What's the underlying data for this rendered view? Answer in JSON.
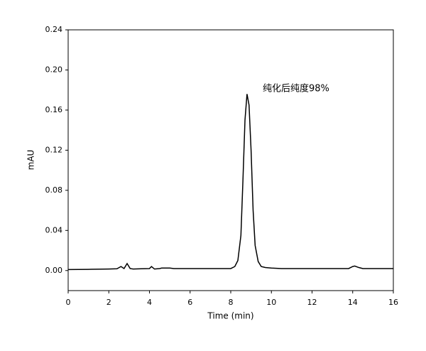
{
  "chart_data": {
    "type": "line",
    "annotation": "纯化后纯度98%",
    "xlabel": "Time (min)",
    "ylabel": "mAU",
    "color": "#000000",
    "x": [
      0,
      1,
      2,
      2.4,
      2.6,
      2.75,
      2.9,
      3.05,
      3.2,
      3.6,
      4.0,
      4.1,
      4.25,
      4.5,
      4.6,
      5.0,
      5.2,
      6,
      7,
      8.0,
      8.2,
      8.35,
      8.5,
      8.6,
      8.7,
      8.8,
      8.9,
      9.0,
      9.1,
      9.2,
      9.35,
      9.5,
      9.7,
      10,
      10.5,
      11,
      12,
      13,
      13.8,
      14.0,
      14.1,
      14.3,
      14.5,
      15,
      16
    ],
    "values": [
      0.001,
      0.0012,
      0.0015,
      0.0018,
      0.004,
      0.002,
      0.007,
      0.002,
      0.0015,
      0.0018,
      0.002,
      0.004,
      0.0015,
      0.002,
      0.0025,
      0.0025,
      0.002,
      0.002,
      0.002,
      0.002,
      0.004,
      0.01,
      0.035,
      0.09,
      0.15,
      0.176,
      0.165,
      0.12,
      0.06,
      0.025,
      0.009,
      0.004,
      0.003,
      0.0025,
      0.002,
      0.002,
      0.002,
      0.002,
      0.002,
      0.004,
      0.0045,
      0.003,
      0.002,
      0.002,
      0.002
    ],
    "xlim": [
      0,
      16
    ],
    "xticks": [
      0,
      2,
      4,
      6,
      8,
      10,
      12,
      14,
      16
    ],
    "ylim": [
      -0.02,
      0.24
    ],
    "yticks": [
      {
        "value": 0,
        "label": "0.00"
      },
      0.04,
      0.08,
      0.12,
      0.16,
      {
        "value": 0.2,
        "label": "0.20"
      },
      0.24
    ]
  }
}
